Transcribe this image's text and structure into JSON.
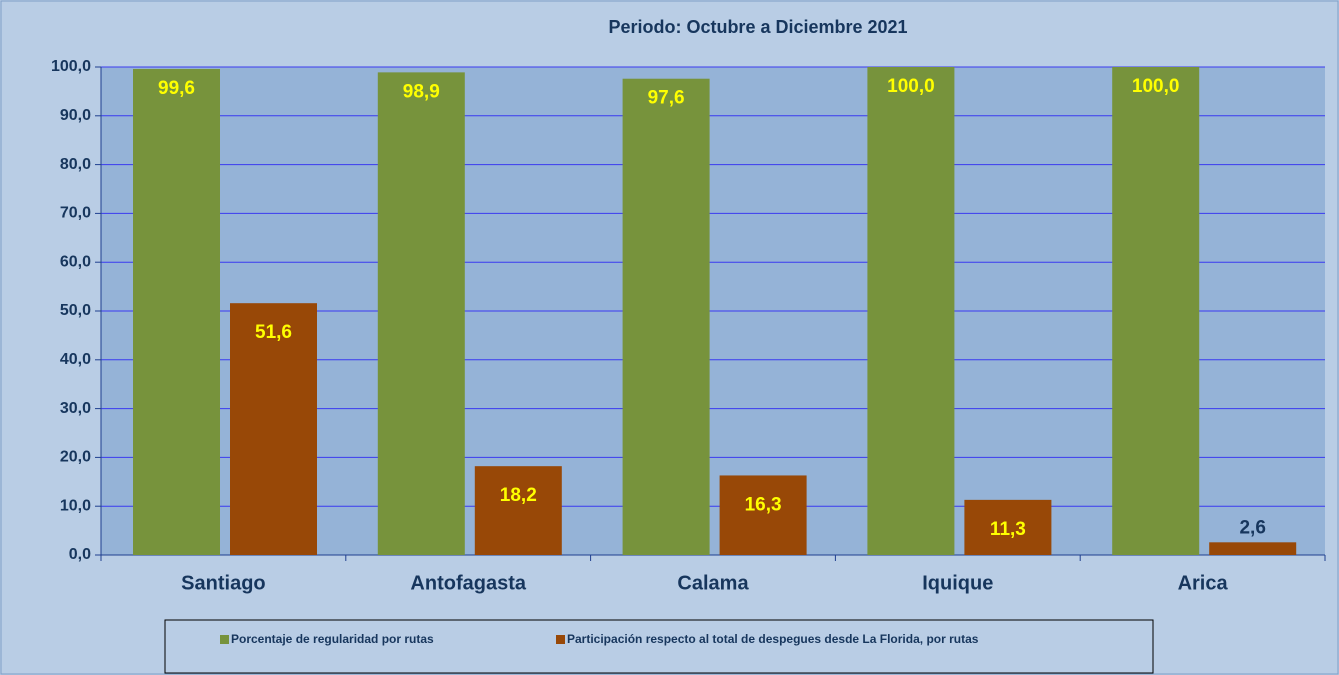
{
  "chart_data": {
    "type": "bar",
    "title": "Periodo:  Octubre a Diciembre 2021",
    "categories": [
      "Santiago",
      "Antofagasta",
      "Calama",
      "Iquique",
      "Arica"
    ],
    "series": [
      {
        "name": "Porcentaje de regularidad por rutas",
        "color": "#77933c",
        "values": [
          99.6,
          98.9,
          97.6,
          100.0,
          100.0
        ],
        "value_labels": [
          "99,6",
          "98,9",
          "97,6",
          "100,0",
          "100,0"
        ]
      },
      {
        "name": "Participación respecto al total de despegues desde La Florida, por rutas",
        "color": "#984807",
        "values": [
          51.6,
          18.2,
          16.3,
          11.3,
          2.6
        ],
        "value_labels": [
          "51,6",
          "18,2",
          "16,3",
          "11,3",
          "2,6"
        ]
      }
    ],
    "ylim": [
      0,
      100
    ],
    "yticks": [
      {
        "value": 0,
        "label": "0,0"
      },
      {
        "value": 10,
        "label": "10,0"
      },
      {
        "value": 20,
        "label": "20,0"
      },
      {
        "value": 30,
        "label": "30,0"
      },
      {
        "value": 40,
        "label": "40,0"
      },
      {
        "value": 50,
        "label": "50,0"
      },
      {
        "value": 60,
        "label": "60,0"
      },
      {
        "value": 70,
        "label": "70,0"
      },
      {
        "value": 80,
        "label": "80,0"
      },
      {
        "value": 90,
        "label": "90,0"
      },
      {
        "value": 100,
        "label": "100,0"
      }
    ],
    "grid": true
  }
}
